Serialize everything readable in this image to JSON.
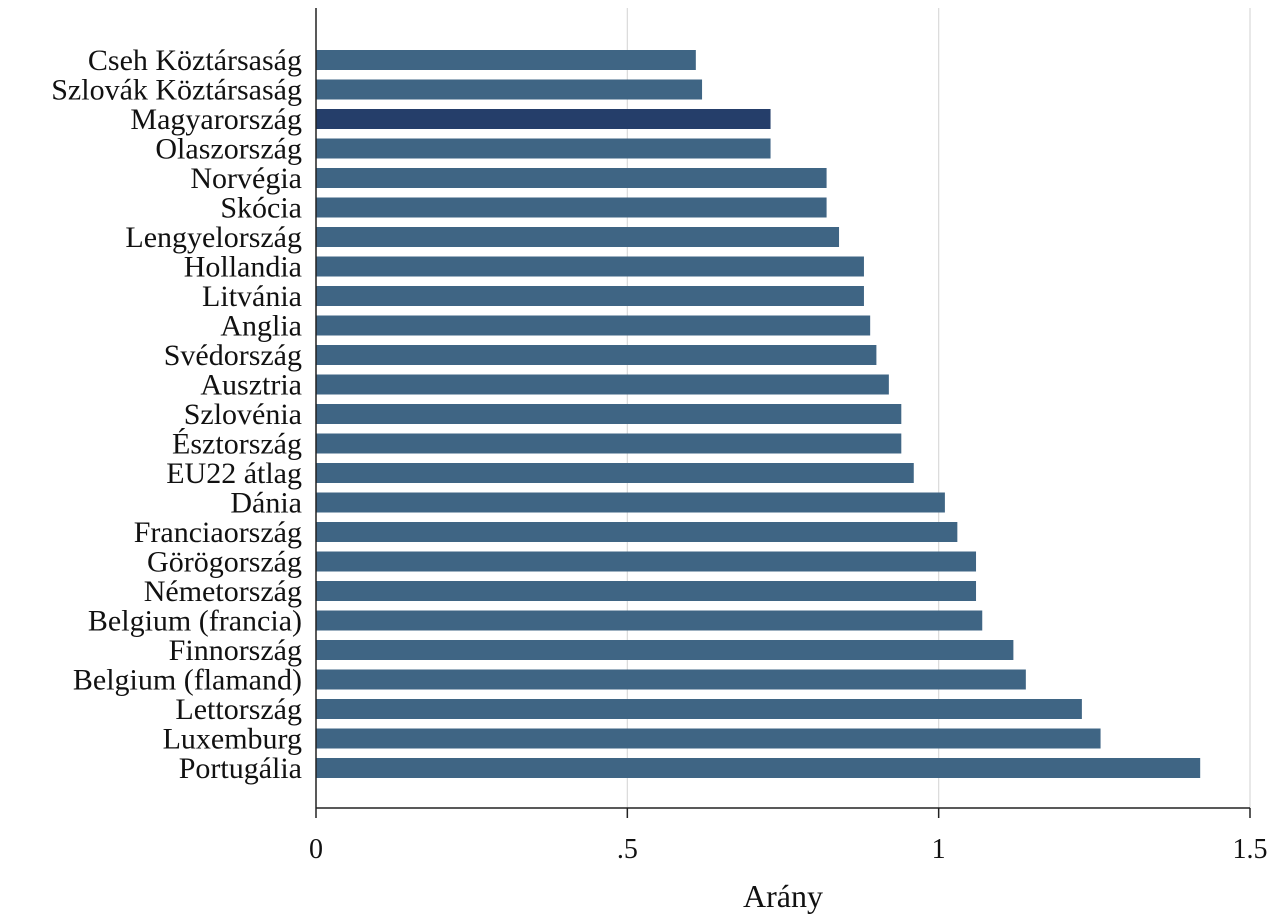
{
  "chart_data": {
    "type": "bar",
    "orientation": "horizontal",
    "xlabel": "Arány",
    "ylabel": "",
    "xlim": [
      0,
      1.5
    ],
    "xticks": [
      {
        "value": 0,
        "label": "0"
      },
      {
        "value": 0.5,
        "label": ".5"
      },
      {
        "value": 1,
        "label": "1"
      },
      {
        "value": 1.5,
        "label": "1.5"
      }
    ],
    "grid": "vertical",
    "bar_color": "#3f6584",
    "highlight_color": "#253e6a",
    "categories": [
      "Cseh Köztársaság",
      "Szlovák Köztársaság",
      "Magyarország",
      "Olaszország",
      "Norvégia",
      "Skócia",
      "Lengyelország",
      "Hollandia",
      "Litvánia",
      "Anglia",
      "Svédország",
      "Ausztria",
      "Szlovénia",
      "Észtország",
      "EU22 átlag",
      "Dánia",
      "Franciaország",
      "Görögország",
      "Németország",
      "Belgium (francia)",
      "Finnország",
      "Belgium (flamand)",
      "Lettország",
      "Luxemburg",
      "Portugália"
    ],
    "values": [
      0.61,
      0.62,
      0.73,
      0.73,
      0.82,
      0.82,
      0.84,
      0.88,
      0.88,
      0.89,
      0.9,
      0.92,
      0.94,
      0.94,
      0.96,
      1.01,
      1.03,
      1.06,
      1.06,
      1.07,
      1.12,
      1.14,
      1.23,
      1.26,
      1.42
    ],
    "highlight": "Magyarország"
  }
}
